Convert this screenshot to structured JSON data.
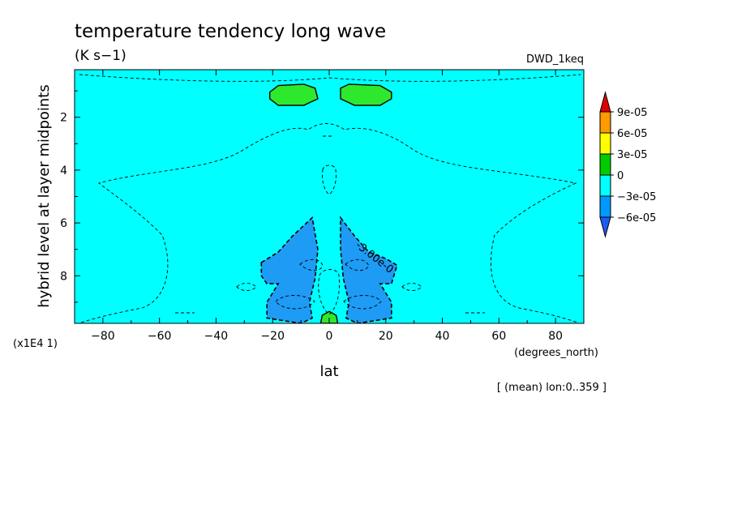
{
  "chart_data": {
    "type": "contour",
    "title": "temperature tendency long wave",
    "units": "(K s−1)",
    "dataset": "DWD_1keq",
    "xlabel": "lat",
    "xunits": "(degrees_north)",
    "ylabel": "hybrid level at layer midpoints",
    "yscale_note": "(x1E4 1)",
    "subtitle": "[ (mean) lon:0..359 ]",
    "xlim": [
      -90,
      90
    ],
    "ylim": [
      0.2,
      9.8
    ],
    "y_inverted": true,
    "xticks": [
      -80,
      -60,
      -40,
      -20,
      0,
      20,
      40,
      60,
      80
    ],
    "xtick_labels": [
      "−80",
      "−60",
      "−40",
      "−20",
      "0",
      "20",
      "40",
      "60",
      "80"
    ],
    "yticks": [
      2,
      4,
      6,
      8
    ],
    "ytick_labels": [
      "2",
      "4",
      "6",
      "8"
    ],
    "contour_label": "-3.00e-0",
    "legend": {
      "levels": [
        "9e-05",
        "6e-05",
        "3e-05",
        "0",
        "−3e-05",
        "−6e-05"
      ],
      "colors": [
        "#e00000",
        "#ff9a00",
        "#ffff00",
        "#00cc00",
        "#00ffff",
        "#0099ff",
        "#1e5cf0"
      ]
    },
    "background_fill": "#00ffff",
    "regions": [
      {
        "name": "upper-left-positive",
        "range": "0 to 3e-05",
        "color": "#2ee82e",
        "points": [
          [
            -21,
            1.05
          ],
          [
            -18,
            0.8
          ],
          [
            -9,
            0.75
          ],
          [
            -5,
            0.9
          ],
          [
            -4,
            1.3
          ],
          [
            -9,
            1.55
          ],
          [
            -18,
            1.55
          ],
          [
            -21,
            1.3
          ]
        ]
      },
      {
        "name": "upper-right-positive",
        "range": "0 to 3e-05",
        "color": "#2ee82e",
        "points": [
          [
            4,
            0.9
          ],
          [
            7,
            0.75
          ],
          [
            18,
            0.8
          ],
          [
            22,
            1.05
          ],
          [
            22,
            1.3
          ],
          [
            18,
            1.55
          ],
          [
            9,
            1.55
          ],
          [
            4,
            1.3
          ]
        ]
      },
      {
        "name": "surface-equator-positive",
        "range": "0 to 3e-05",
        "color": "#2ee82e",
        "points": [
          [
            -3,
            9.8
          ],
          [
            -2.5,
            9.5
          ],
          [
            0,
            9.35
          ],
          [
            2.5,
            9.5
          ],
          [
            3,
            9.8
          ]
        ]
      },
      {
        "name": "left-negative-lobe",
        "range": "-6e-05 to -3e-05",
        "color": "#1e9bf5",
        "points": [
          [
            -24,
            7.5
          ],
          [
            -18,
            7.1
          ],
          [
            -13,
            6.5
          ],
          [
            -6,
            5.8
          ],
          [
            -4,
            7.0
          ],
          [
            -5,
            8.1
          ],
          [
            -7,
            9.0
          ],
          [
            -6,
            9.6
          ],
          [
            -10,
            9.8
          ],
          [
            -22,
            9.6
          ],
          [
            -22,
            9.0
          ],
          [
            -18,
            8.3
          ],
          [
            -22,
            8.3
          ],
          [
            -24,
            8.0
          ]
        ]
      },
      {
        "name": "right-negative-lobe",
        "range": "-6e-05 to -3e-05",
        "color": "#1e9bf5",
        "points": [
          [
            4,
            5.8
          ],
          [
            9,
            6.5
          ],
          [
            14,
            7.1
          ],
          [
            20,
            7.35
          ],
          [
            24,
            7.6
          ],
          [
            22,
            8.3
          ],
          [
            18,
            8.3
          ],
          [
            22,
            9.0
          ],
          [
            22,
            9.6
          ],
          [
            10,
            9.8
          ],
          [
            6,
            9.6
          ],
          [
            7,
            9.0
          ],
          [
            5,
            8.1
          ],
          [
            4,
            7.0
          ]
        ]
      }
    ]
  }
}
